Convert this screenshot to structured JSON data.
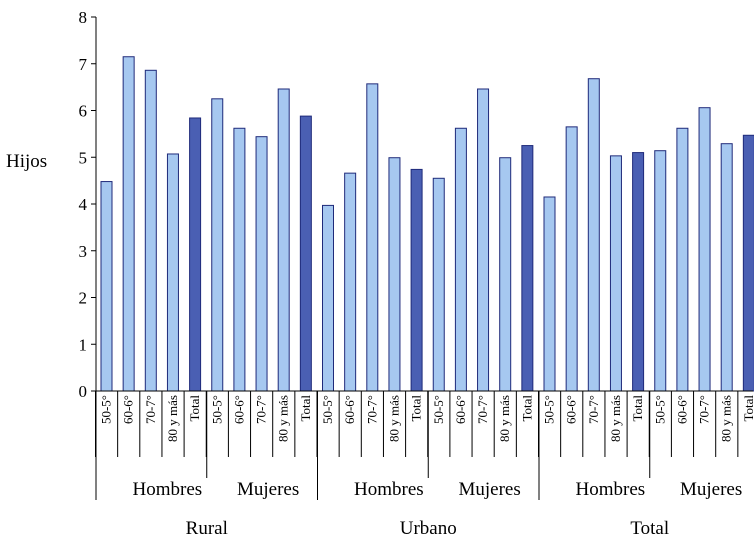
{
  "chart_data": {
    "type": "bar",
    "ylabel": "Hijos",
    "ylim": [
      0,
      8
    ],
    "yticks": [
      "0",
      "1",
      "2",
      "3",
      "4",
      "5",
      "6",
      "7",
      "8"
    ],
    "grid": false,
    "groups": [
      {
        "area": "Rural",
        "subgroups": [
          {
            "sex": "Hombres",
            "categories": [
              "50-5°",
              "60-6°",
              "70-7°",
              "80 y más",
              "Total"
            ],
            "values": [
              4.48,
              7.15,
              6.86,
              5.07,
              5.84
            ]
          },
          {
            "sex": "Mujeres",
            "categories": [
              "50-5°",
              "60-6°",
              "70-7°",
              "80 y más",
              "Total"
            ],
            "values": [
              6.25,
              5.62,
              5.44,
              6.46,
              5.88
            ]
          }
        ]
      },
      {
        "area": "Urbano",
        "subgroups": [
          {
            "sex": "Hombres",
            "categories": [
              "50-5°",
              "60-6°",
              "70-7°",
              "80 y más",
              "Total"
            ],
            "values": [
              3.97,
              4.66,
              6.57,
              4.99,
              4.74
            ]
          },
          {
            "sex": "Mujeres",
            "categories": [
              "50-5°",
              "60-6°",
              "70-7°",
              "80 y más",
              "Total"
            ],
            "values": [
              4.55,
              5.62,
              6.46,
              4.99,
              5.25
            ]
          }
        ]
      },
      {
        "area": "Total",
        "subgroups": [
          {
            "sex": "Hombres",
            "categories": [
              "50-5°",
              "60-6°",
              "70-7°",
              "80 y más",
              "Total"
            ],
            "values": [
              4.15,
              5.65,
              6.68,
              5.03,
              5.1
            ]
          },
          {
            "sex": "Mujeres",
            "categories": [
              "50-5°",
              "60-6°",
              "70-7°",
              "80 y más",
              "Total"
            ],
            "values": [
              5.14,
              5.62,
              6.06,
              5.29,
              5.47
            ]
          }
        ]
      }
    ],
    "colors": {
      "age_bar": "#a6c8f0",
      "total_bar": "#4a5fb3",
      "bar_stroke": "#1f2a7a",
      "axis": "#000000"
    }
  }
}
